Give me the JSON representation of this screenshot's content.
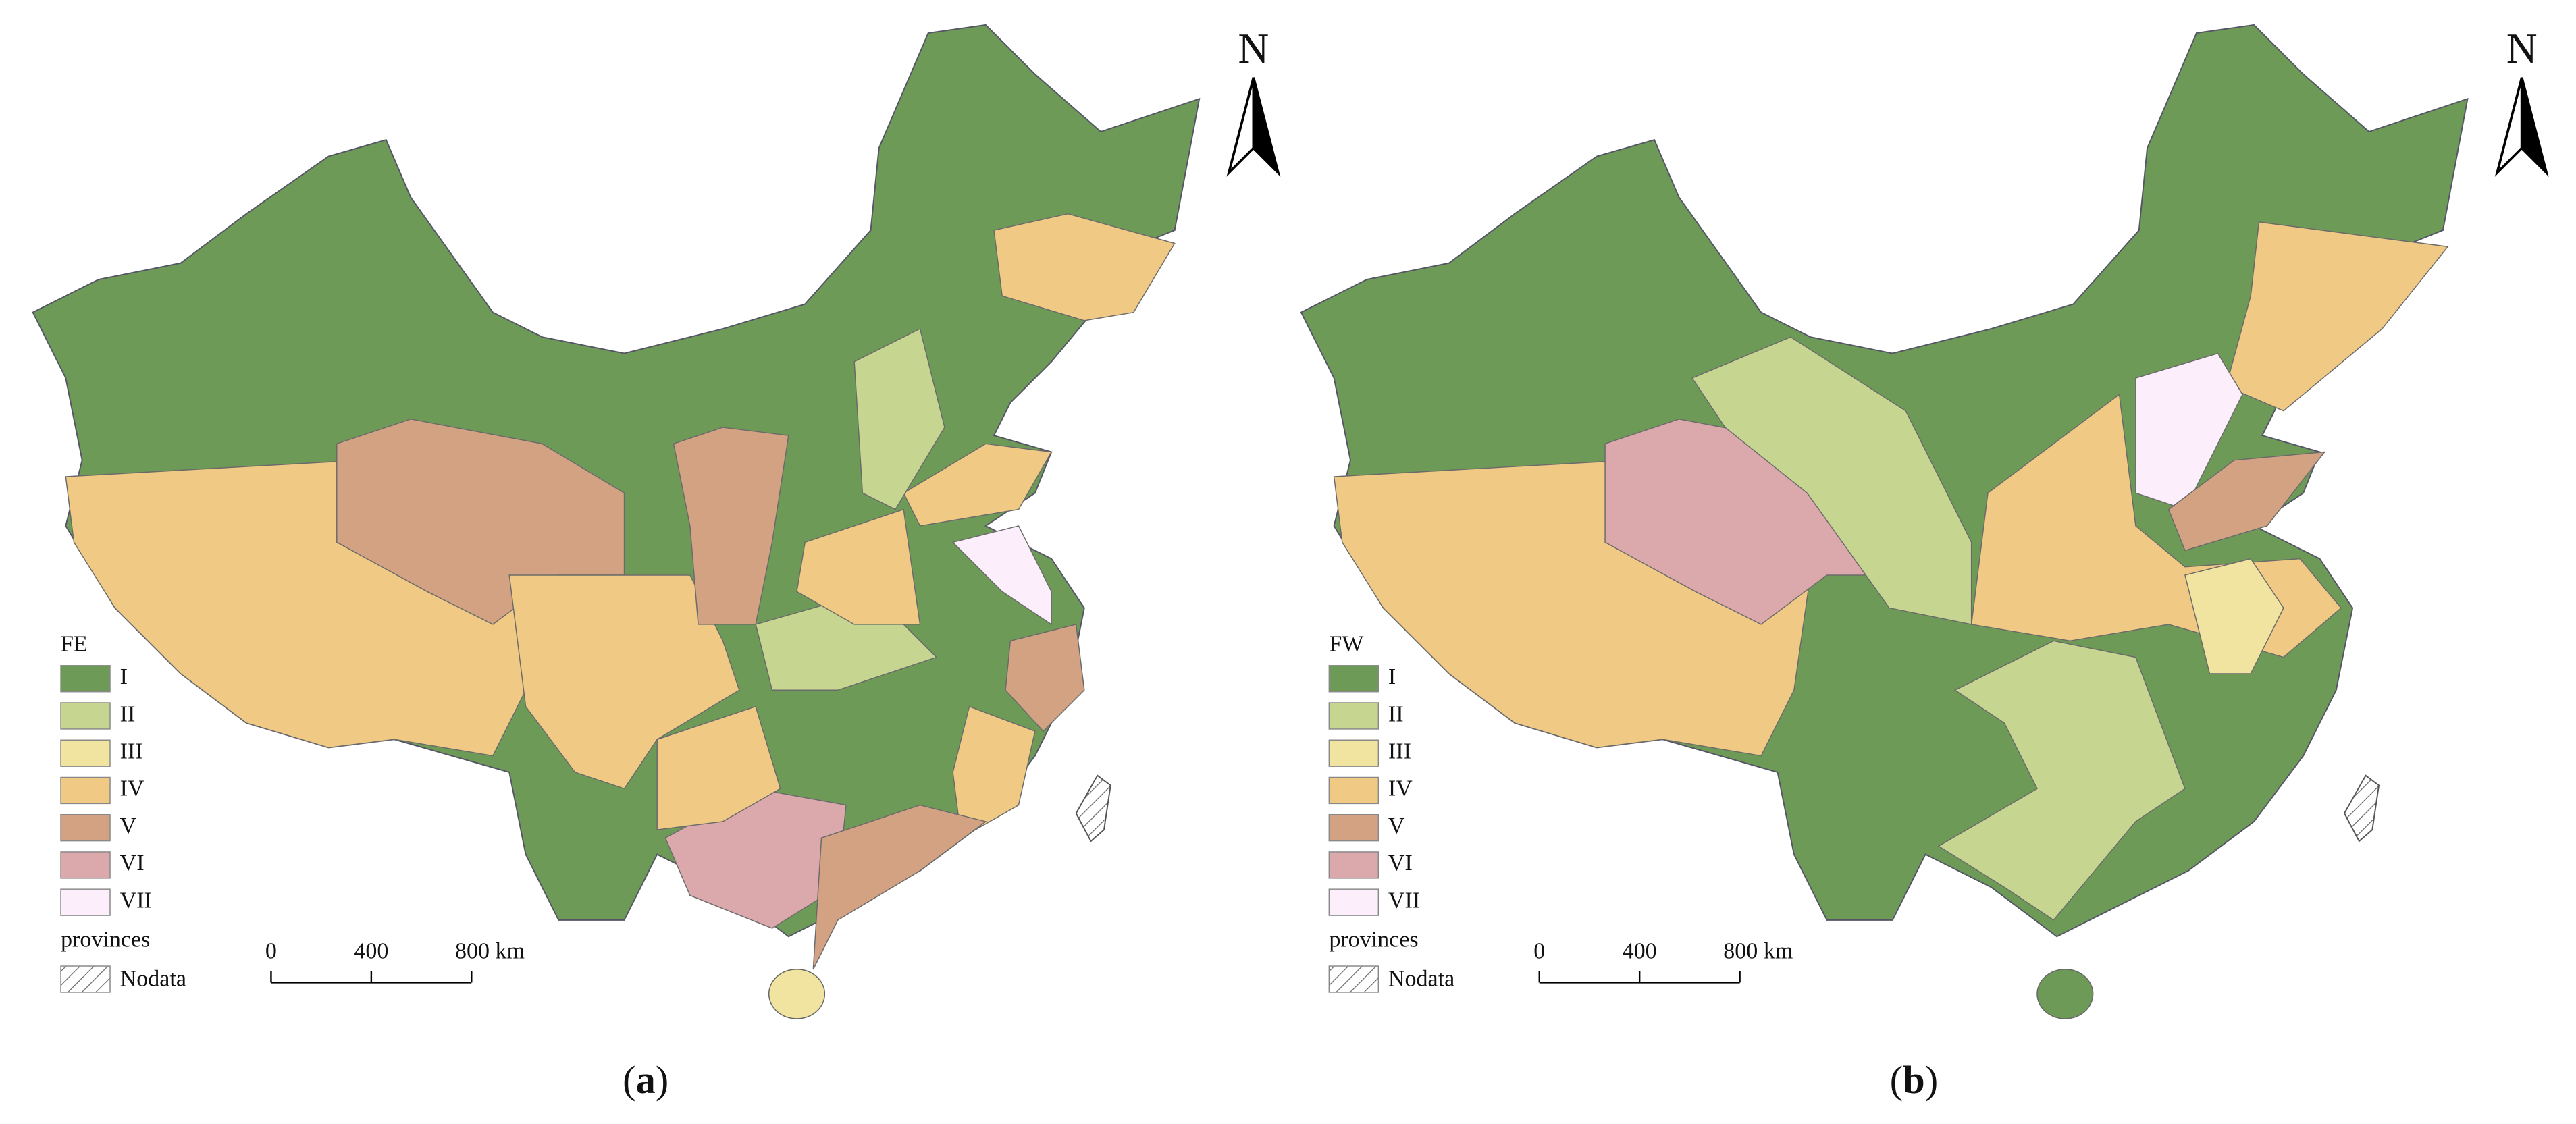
{
  "panels": [
    {
      "legend": {
        "title": "FE",
        "classes": [
          {
            "label": "I",
            "color": "#6e9a58"
          },
          {
            "label": "II",
            "color": "#c6d690"
          },
          {
            "label": "III",
            "color": "#f1e3a0"
          },
          {
            "label": "IV",
            "color": "#f0ca84"
          },
          {
            "label": "V",
            "color": "#d3a283"
          },
          {
            "label": "VI",
            "color": "#dba8ac"
          },
          {
            "label": "VII",
            "color": "#fdeefb"
          }
        ],
        "provinces_label": "provinces",
        "nodata_label": "Nodata"
      },
      "scale": {
        "labels": [
          "0",
          "400",
          "800 km"
        ]
      },
      "north": "N",
      "caption": {
        "open": "(",
        "letter": "a",
        "close": ")"
      }
    },
    {
      "legend": {
        "title": "FW",
        "classes": [
          {
            "label": "I",
            "color": "#6e9a58"
          },
          {
            "label": "II",
            "color": "#c6d690"
          },
          {
            "label": "III",
            "color": "#f1e3a0"
          },
          {
            "label": "IV",
            "color": "#f0ca84"
          },
          {
            "label": "V",
            "color": "#d3a283"
          },
          {
            "label": "VI",
            "color": "#dba8ac"
          },
          {
            "label": "VII",
            "color": "#fdeefb"
          }
        ],
        "provinces_label": "provinces",
        "nodata_label": "Nodata"
      },
      "scale": {
        "labels": [
          "0",
          "400",
          "800 km"
        ]
      },
      "north": "N",
      "caption": {
        "open": "(",
        "letter": "b",
        "close": ")"
      }
    }
  ]
}
